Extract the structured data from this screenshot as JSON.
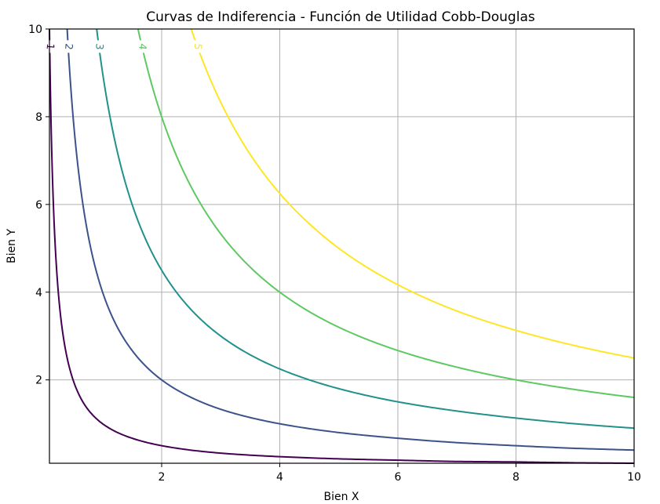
{
  "chart_data": {
    "type": "line",
    "title": "Curvas de Indiferencia - Función de Utilidad Cobb-Douglas",
    "xlabel": "Bien X",
    "ylabel": "Bien Y",
    "xlim": [
      0.1,
      10
    ],
    "ylim": [
      0.1,
      10
    ],
    "xticks": [
      2,
      4,
      6,
      8,
      10
    ],
    "yticks": [
      2,
      4,
      6,
      8,
      10
    ],
    "grid": true,
    "series": [
      {
        "name": "1",
        "color": "#440154",
        "x": [
          0.1,
          0.11,
          0.13,
          0.15,
          0.2,
          0.3,
          0.5,
          0.75,
          1,
          1.5,
          2,
          3,
          4,
          5,
          6,
          7,
          8,
          9,
          10
        ],
        "y": [
          10,
          9.09,
          7.69,
          6.67,
          5,
          3.33,
          2,
          1.33,
          1,
          0.67,
          0.5,
          0.33,
          0.25,
          0.2,
          0.17,
          0.14,
          0.13,
          0.11,
          0.1
        ]
      },
      {
        "name": "2",
        "color": "#3b528b",
        "x": [
          0.4,
          0.5,
          0.6,
          0.8,
          1,
          1.25,
          1.5,
          2,
          2.5,
          3,
          4,
          5,
          6,
          7,
          8,
          9,
          10
        ],
        "y": [
          10,
          8,
          6.67,
          5,
          4,
          3.2,
          2.67,
          2,
          1.6,
          1.33,
          1,
          0.8,
          0.67,
          0.57,
          0.5,
          0.44,
          0.4
        ]
      },
      {
        "name": "3",
        "color": "#21918c",
        "x": [
          0.9,
          1,
          1.2,
          1.5,
          2,
          2.5,
          3,
          4,
          5,
          6,
          7,
          8,
          9,
          10
        ],
        "y": [
          10,
          9,
          7.5,
          6,
          4.5,
          3.6,
          3,
          2.25,
          1.8,
          1.5,
          1.29,
          1.13,
          1,
          0.9
        ]
      },
      {
        "name": "4",
        "color": "#5ec962",
        "x": [
          1.6,
          1.8,
          2,
          2.5,
          3,
          3.5,
          4,
          5,
          6,
          7,
          8,
          9,
          10
        ],
        "y": [
          10,
          8.89,
          8,
          6.4,
          5.33,
          4.57,
          4,
          3.2,
          2.67,
          2.29,
          2,
          1.78,
          1.6
        ]
      },
      {
        "name": "5",
        "color": "#fde725",
        "x": [
          2.5,
          3,
          3.5,
          4,
          4.5,
          5,
          6,
          7,
          8,
          9,
          10
        ],
        "y": [
          10,
          8.33,
          7.14,
          6.25,
          5.56,
          5,
          4.17,
          3.57,
          3.13,
          2.78,
          2.5
        ]
      }
    ]
  }
}
